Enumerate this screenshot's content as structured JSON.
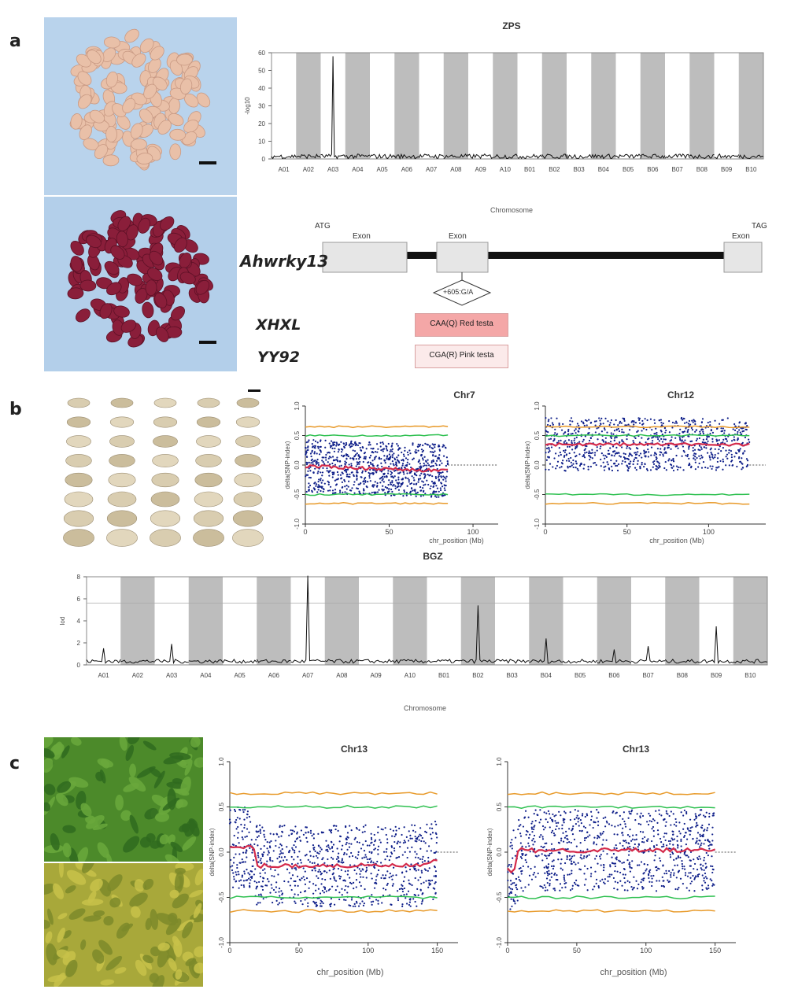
{
  "panels": {
    "a": "a",
    "b": "b",
    "c": "c"
  },
  "colors": {
    "blue": "#10208a",
    "red": "#d42a4a",
    "green": "#2ec050",
    "orange": "#e89a2a",
    "gray": "#bdbdbd",
    "seed_pink": "#e9c0a8",
    "seed_red": "#8a1e3a",
    "leaf_green": "#4c8a2a",
    "leaf_yellow": "#a8a83a"
  },
  "panel_a": {
    "manhattan": {
      "title": "ZPS",
      "ylabel": "-log10",
      "xlabel": "Chromosome",
      "yticks": [
        "0",
        "10",
        "20",
        "30",
        "40",
        "50",
        "60"
      ],
      "chromosomes": [
        "A01",
        "A02",
        "A03",
        "A04",
        "A05",
        "A06",
        "A07",
        "A08",
        "A09",
        "A10",
        "B01",
        "B02",
        "B03",
        "B04",
        "B05",
        "B06",
        "B07",
        "B08",
        "B09",
        "B10"
      ],
      "peak": {
        "chromosome": "A03",
        "value": 58
      }
    },
    "gene": {
      "name": "Ahwrky13",
      "start": "ATG",
      "end": "TAG",
      "exons": [
        "Exon",
        "Exon",
        "Exon"
      ],
      "snp": "+605:G/A"
    },
    "alleles": [
      {
        "cultivar": "XHXL",
        "codon": "CAA(Q) Red testa"
      },
      {
        "cultivar": "YY92",
        "codon": "CGA(R) Pink testa"
      }
    ]
  },
  "panel_b": {
    "snp_index_plots": [
      {
        "title": "Chr7",
        "xlabel": "chr_position (Mb)",
        "ylabel": "delta(SNP-index)",
        "xticks": [
          "0",
          "50",
          "100"
        ],
        "yticks": [
          "-1.0",
          "-0.5",
          "0.0",
          "0.5",
          "1.0"
        ],
        "length_mb": 85
      },
      {
        "title": "Chr12",
        "xlabel": "chr_position (Mb)",
        "ylabel": "delta(SNP-index)",
        "xticks": [
          "0",
          "50",
          "100"
        ],
        "yticks": [
          "-1.0",
          "-0.5",
          "0.0",
          "0.5",
          "1.0"
        ],
        "length_mb": 125
      }
    ],
    "manhattan": {
      "title": "BGZ",
      "ylabel": "lod",
      "xlabel": "Chromosome",
      "yticks": [
        "0",
        "2",
        "4",
        "6",
        "8"
      ],
      "threshold": 5.6,
      "chromosomes": [
        "A01",
        "A02",
        "A03",
        "A04",
        "A05",
        "A06",
        "A07",
        "A08",
        "A09",
        "A10",
        "B01",
        "B02",
        "B03",
        "B04",
        "B05",
        "B06",
        "B07",
        "B08",
        "B09",
        "B10"
      ],
      "peaks": [
        {
          "chromosome": "A01",
          "value": 1.5
        },
        {
          "chromosome": "A03",
          "value": 1.9
        },
        {
          "chromosome": "A07",
          "value": 8.1
        },
        {
          "chromosome": "B02",
          "value": 5.4
        },
        {
          "chromosome": "B04",
          "value": 2.4
        },
        {
          "chromosome": "B06",
          "value": 1.4
        },
        {
          "chromosome": "B07",
          "value": 1.7
        },
        {
          "chromosome": "B09",
          "value": 3.5
        }
      ]
    }
  },
  "panel_c": {
    "snp_index_plots": [
      {
        "title": "Chr13",
        "xlabel": "chr_position (Mb)",
        "ylabel": "delta(SNP-index)",
        "xticks": [
          "0",
          "50",
          "100",
          "150"
        ],
        "yticks": [
          "-1.0",
          "-0.5",
          "0.0",
          "0.5",
          "1.0"
        ],
        "length_mb": 150,
        "trend": "low"
      },
      {
        "title": "Chr13",
        "xlabel": "chr_position (Mb)",
        "ylabel": "delta(SNP-index)",
        "xticks": [
          "0",
          "50",
          "100",
          "150"
        ],
        "yticks": [
          "-1.0",
          "-0.5",
          "0.0",
          "0.5",
          "1.0"
        ],
        "length_mb": 150,
        "trend": "flat"
      }
    ]
  }
}
